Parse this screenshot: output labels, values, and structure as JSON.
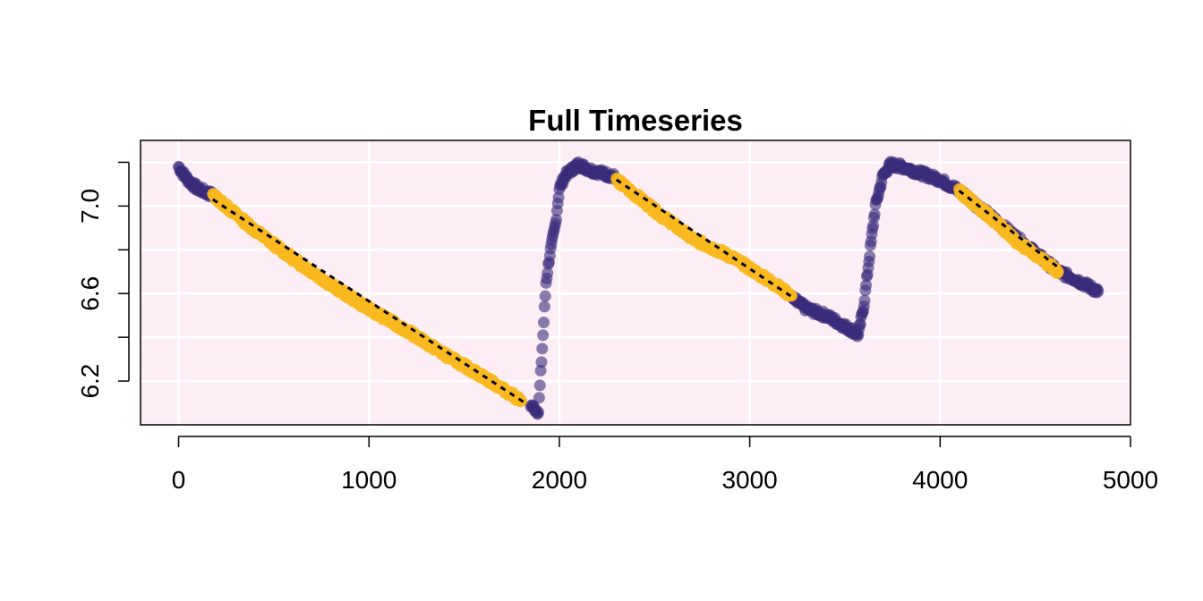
{
  "chart_data": {
    "type": "scatter",
    "title": "Full Timeseries",
    "xlabel": "",
    "ylabel": "",
    "xlim": [
      -200,
      5000
    ],
    "ylim": [
      6.0,
      7.3
    ],
    "x_ticks": [
      0,
      1000,
      2000,
      3000,
      4000,
      5000
    ],
    "x_tick_labels": [
      "0",
      "1000",
      "2000",
      "3000",
      "4000",
      "5000"
    ],
    "y_ticks": [
      6.2,
      6.4,
      6.6,
      6.8,
      7.0,
      7.2
    ],
    "y_tick_labels": [
      "6.2",
      "",
      "6.6",
      "",
      "7.0",
      ""
    ],
    "grid": true,
    "colors": {
      "background": "#fdeef5",
      "grid": "#ffffff",
      "series_all": "#3b2c7b",
      "series_fit": "#f9b81f",
      "trend_line": "#000000"
    },
    "series": [
      {
        "role": "all_points",
        "color": "#3b2c7b",
        "x": [
          0,
          30,
          60,
          100,
          150,
          180,
          1850,
          1890,
          1910,
          1930,
          1950,
          1980,
          2000,
          2030,
          2070,
          2100,
          2150,
          2180,
          2230,
          2300,
          3220,
          3300,
          3400,
          3480,
          3540,
          3570,
          3600,
          3630,
          3660,
          3700,
          3740,
          3800,
          3900,
          4000,
          4080,
          4100,
          4620,
          4700,
          4830
        ],
        "y": [
          7.18,
          7.14,
          7.11,
          7.08,
          7.06,
          7.05,
          6.09,
          6.06,
          6.35,
          6.65,
          6.78,
          6.92,
          7.08,
          7.14,
          7.17,
          7.19,
          7.17,
          7.16,
          7.15,
          7.13,
          6.58,
          6.53,
          6.5,
          6.46,
          6.43,
          6.41,
          6.55,
          6.78,
          7.0,
          7.14,
          7.19,
          7.18,
          7.15,
          7.12,
          7.08,
          7.07,
          6.7,
          6.67,
          6.61
        ]
      },
      {
        "role": "fitted_segments",
        "color": "#f9b81f",
        "x": [
          180,
          400,
          600,
          800,
          1000,
          1200,
          1400,
          1600,
          1800,
          2300,
          2500,
          2700,
          2900,
          3100,
          3220,
          4100,
          4250,
          4400,
          4620
        ],
        "y": [
          7.05,
          6.89,
          6.76,
          6.64,
          6.53,
          6.43,
          6.32,
          6.22,
          6.11,
          7.12,
          6.98,
          6.85,
          6.77,
          6.66,
          6.59,
          7.07,
          6.96,
          6.84,
          6.7
        ]
      }
    ],
    "trend_lines": [
      {
        "x": [
          180,
          1820
        ],
        "y": [
          7.03,
          6.1
        ]
      },
      {
        "x": [
          2300,
          3230
        ],
        "y": [
          7.12,
          6.58
        ]
      },
      {
        "x": [
          4100,
          4620
        ],
        "y": [
          7.07,
          6.72
        ]
      }
    ]
  }
}
